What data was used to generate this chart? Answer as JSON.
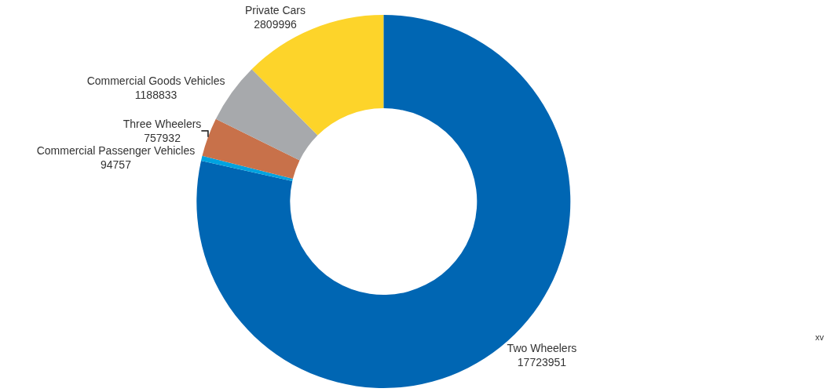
{
  "chart_data": {
    "type": "donut",
    "categories": [
      "Two Wheelers",
      "Commercial Passenger Vehicles",
      "Three Wheelers",
      "Commercial Goods Vehicles",
      "Private Cars"
    ],
    "values": [
      17723951,
      94757,
      757932,
      1188833,
      2809996
    ],
    "colors": [
      "#0066b3",
      "#00a3e0",
      "#c8714a",
      "#a7a9ac",
      "#fdd42a"
    ],
    "data_labels": true,
    "legend": false,
    "annotations": [
      "xv"
    ]
  }
}
